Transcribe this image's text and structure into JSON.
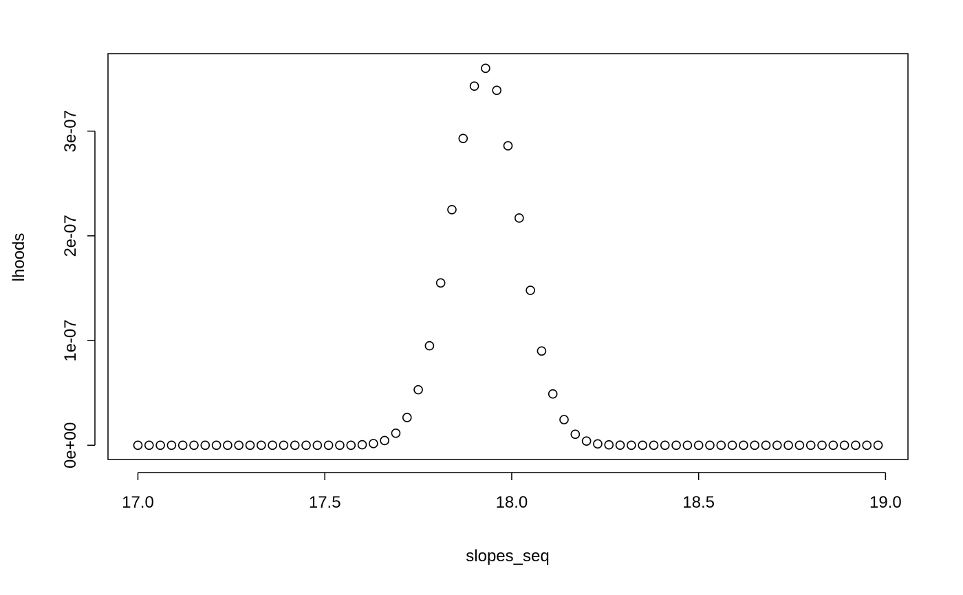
{
  "chart_data": {
    "type": "scatter",
    "title": "",
    "xlabel": "slopes_seq",
    "ylabel": "lhoods",
    "xlim": [
      16.92,
      19.06
    ],
    "ylim": [
      -1.36e-08,
      3.74e-07
    ],
    "x_ticks": [
      17.0,
      17.5,
      18.0,
      18.5,
      19.0
    ],
    "x_tick_labels": [
      "17.0",
      "17.5",
      "18.0",
      "18.5",
      "19.0"
    ],
    "y_ticks": [
      0,
      1e-07,
      2e-07,
      3e-07
    ],
    "y_tick_labels": [
      "0e+00",
      "1e-07",
      "2e-07",
      "3e-07"
    ],
    "grid": false,
    "legend": "none",
    "marker": "open-circle",
    "series": [
      {
        "x": [
          17.0,
          17.03,
          17.06,
          17.09,
          17.12,
          17.15,
          17.18,
          17.21,
          17.24,
          17.27,
          17.3,
          17.33,
          17.36,
          17.39,
          17.42,
          17.45,
          17.48,
          17.51,
          17.54,
          17.57,
          17.6,
          17.63,
          17.66,
          17.69,
          17.72,
          17.75,
          17.78,
          17.81,
          17.84,
          17.87,
          17.9,
          17.93,
          17.96,
          17.99,
          18.02,
          18.05,
          18.08,
          18.11,
          18.14,
          18.17,
          18.2,
          18.23,
          18.26,
          18.29,
          18.32,
          18.35,
          18.38,
          18.41,
          18.44,
          18.47,
          18.5,
          18.53,
          18.56,
          18.59,
          18.62,
          18.65,
          18.68,
          18.71,
          18.74,
          18.77,
          18.8,
          18.83,
          18.86,
          18.89,
          18.92,
          18.95,
          18.98
        ],
        "y": [
          0,
          0,
          0,
          0,
          0,
          0,
          0,
          0,
          0,
          0,
          0,
          0,
          0,
          0,
          0,
          0,
          0,
          0,
          0,
          0,
          5e-10,
          1.6e-09,
          4.5e-09,
          1.15e-08,
          2.65e-08,
          5.3e-08,
          9.5e-08,
          1.55e-07,
          2.25e-07,
          2.93e-07,
          3.43e-07,
          3.6e-07,
          3.39e-07,
          2.86e-07,
          2.17e-07,
          1.48e-07,
          9e-08,
          4.9e-08,
          2.45e-08,
          1.05e-08,
          4e-09,
          1.3e-09,
          4e-10,
          1e-10,
          0,
          0,
          0,
          0,
          0,
          0,
          0,
          0,
          0,
          0,
          0,
          0,
          0,
          0,
          0,
          0,
          0,
          0,
          0,
          0,
          0,
          0,
          0
        ]
      }
    ]
  }
}
